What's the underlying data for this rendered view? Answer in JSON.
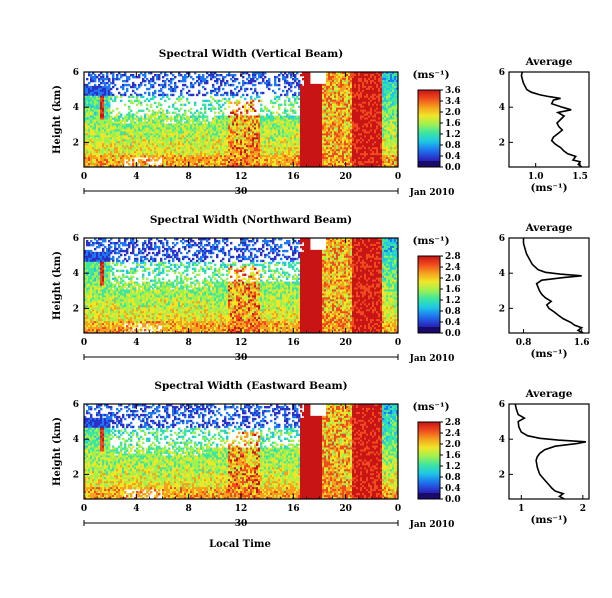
{
  "figure": {
    "xlabel": "Local Time",
    "date_label": "Jan 2010",
    "day_label": "30",
    "colorbar_unit": "(ms⁻¹)",
    "profile_unit": "(ms⁻¹)",
    "profile_title": "Average",
    "ylabel": "Height (km)"
  },
  "colors": {
    "colormap": [
      "#1a0a6b",
      "#2a30c8",
      "#1e78f0",
      "#1ec8e6",
      "#3ce6a0",
      "#a0f050",
      "#f0e628",
      "#f5a01e",
      "#f04b1e",
      "#c81414"
    ],
    "background": "#ffffff"
  },
  "chart_data": [
    {
      "type": "heatmap",
      "title": "Spectral Width (Vertical Beam)",
      "x_ticks": [
        "0",
        "4",
        "8",
        "12",
        "16",
        "20",
        "0"
      ],
      "y_ticks": [
        "6",
        "4",
        "2"
      ],
      "colorbar_ticks": [
        "3.6",
        "3.4",
        "2.0",
        "1.6",
        "1.2",
        "0.8",
        "0.4",
        "0.0"
      ],
      "profile": {
        "title": "Average",
        "x_ticks": [
          "1.0",
          "1.5"
        ],
        "x_range": [
          0.7,
          1.6
        ],
        "y_ticks": [
          "6",
          "4",
          "2"
        ],
        "y_range": [
          0.6,
          6
        ],
        "points": [
          [
            1.52,
            0.6
          ],
          [
            1.48,
            0.75
          ],
          [
            1.5,
            0.9
          ],
          [
            1.42,
            1.0
          ],
          [
            1.45,
            1.2
          ],
          [
            1.36,
            1.35
          ],
          [
            1.32,
            1.5
          ],
          [
            1.28,
            1.7
          ],
          [
            1.22,
            1.9
          ],
          [
            1.18,
            2.1
          ],
          [
            1.2,
            2.3
          ],
          [
            1.25,
            2.5
          ],
          [
            1.3,
            2.7
          ],
          [
            1.26,
            2.9
          ],
          [
            1.24,
            3.1
          ],
          [
            1.28,
            3.3
          ],
          [
            1.32,
            3.5
          ],
          [
            1.25,
            3.7
          ],
          [
            1.4,
            3.85
          ],
          [
            1.3,
            4.0
          ],
          [
            1.18,
            4.2
          ],
          [
            1.2,
            4.4
          ],
          [
            1.28,
            4.5
          ],
          [
            1.15,
            4.6
          ],
          [
            1.05,
            4.7
          ],
          [
            0.95,
            4.85
          ],
          [
            0.9,
            5.0
          ],
          [
            0.88,
            5.2
          ],
          [
            0.86,
            5.4
          ],
          [
            0.85,
            5.6
          ],
          [
            0.84,
            5.8
          ],
          [
            0.85,
            6.0
          ]
        ]
      }
    },
    {
      "type": "heatmap",
      "title": "Spectral Width (Northward Beam)",
      "x_ticks": [
        "0",
        "4",
        "8",
        "12",
        "16",
        "20",
        "0"
      ],
      "y_ticks": [
        "6",
        "4",
        "2"
      ],
      "colorbar_ticks": [
        "2.8",
        "2.4",
        "2.0",
        "1.6",
        "1.2",
        "0.8",
        "0.4",
        "0.0"
      ],
      "profile": {
        "title": "Average",
        "x_ticks": [
          "0.8",
          "1.6"
        ],
        "x_range": [
          0.6,
          1.7
        ],
        "y_ticks": [
          "6",
          "4",
          "2"
        ],
        "y_range": [
          0.6,
          6
        ],
        "points": [
          [
            1.62,
            0.6
          ],
          [
            1.55,
            0.75
          ],
          [
            1.6,
            0.9
          ],
          [
            1.5,
            1.05
          ],
          [
            1.45,
            1.2
          ],
          [
            1.35,
            1.4
          ],
          [
            1.28,
            1.6
          ],
          [
            1.22,
            1.8
          ],
          [
            1.15,
            2.0
          ],
          [
            1.12,
            2.2
          ],
          [
            1.18,
            2.4
          ],
          [
            1.1,
            2.6
          ],
          [
            1.05,
            2.8
          ],
          [
            1.02,
            3.0
          ],
          [
            1.0,
            3.2
          ],
          [
            0.98,
            3.4
          ],
          [
            1.05,
            3.6
          ],
          [
            1.35,
            3.75
          ],
          [
            1.6,
            3.85
          ],
          [
            1.3,
            3.95
          ],
          [
            1.1,
            4.05
          ],
          [
            1.0,
            4.2
          ],
          [
            0.92,
            4.5
          ],
          [
            0.88,
            4.8
          ],
          [
            0.84,
            5.1
          ],
          [
            0.82,
            5.4
          ],
          [
            0.8,
            5.7
          ],
          [
            0.8,
            6.0
          ]
        ]
      }
    },
    {
      "type": "heatmap",
      "title": "Spectral Width (Eastward Beam)",
      "x_ticks": [
        "0",
        "4",
        "8",
        "12",
        "16",
        "20",
        "0"
      ],
      "y_ticks": [
        "6",
        "4",
        "2"
      ],
      "colorbar_ticks": [
        "2.8",
        "2.4",
        "2.0",
        "1.6",
        "1.2",
        "0.8",
        "0.4",
        "0.0"
      ],
      "profile": {
        "title": "Average",
        "x_ticks": [
          "1",
          "2"
        ],
        "x_range": [
          0.8,
          2.1
        ],
        "y_ticks": [
          "6",
          "4",
          "2"
        ],
        "y_range": [
          0.6,
          6
        ],
        "points": [
          [
            1.7,
            0.6
          ],
          [
            1.62,
            0.75
          ],
          [
            1.68,
            0.9
          ],
          [
            1.55,
            1.05
          ],
          [
            1.5,
            1.2
          ],
          [
            1.45,
            1.4
          ],
          [
            1.4,
            1.6
          ],
          [
            1.35,
            1.8
          ],
          [
            1.3,
            2.0
          ],
          [
            1.28,
            2.2
          ],
          [
            1.26,
            2.4
          ],
          [
            1.25,
            2.6
          ],
          [
            1.24,
            2.8
          ],
          [
            1.26,
            3.0
          ],
          [
            1.3,
            3.2
          ],
          [
            1.38,
            3.4
          ],
          [
            1.55,
            3.6
          ],
          [
            1.9,
            3.75
          ],
          [
            2.05,
            3.85
          ],
          [
            1.6,
            3.95
          ],
          [
            1.3,
            4.05
          ],
          [
            1.1,
            4.2
          ],
          [
            1.0,
            4.4
          ],
          [
            0.96,
            4.7
          ],
          [
            0.95,
            5.0
          ],
          [
            1.05,
            5.2
          ],
          [
            0.95,
            5.4
          ],
          [
            0.92,
            5.7
          ],
          [
            0.9,
            6.0
          ]
        ]
      }
    }
  ]
}
